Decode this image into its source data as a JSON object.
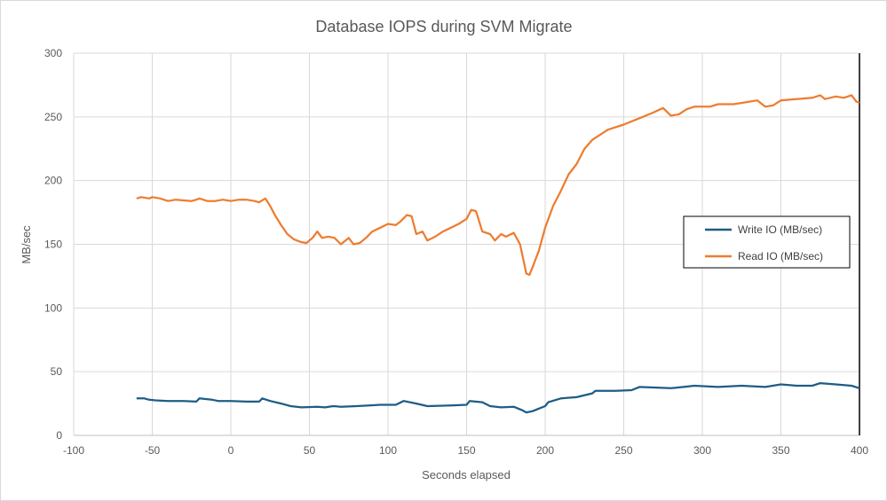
{
  "chart_data": {
    "type": "line",
    "title": "Database IOPS during SVM Migrate",
    "xlabel": "Seconds elapsed",
    "ylabel": "MB/sec",
    "xlim": [
      -100,
      400
    ],
    "ylim": [
      0,
      300
    ],
    "xticks": [
      -100,
      -50,
      0,
      50,
      100,
      150,
      200,
      250,
      300,
      350,
      400
    ],
    "yticks": [
      0,
      50,
      100,
      150,
      200,
      250,
      300
    ],
    "grid": true,
    "legend_position": "right",
    "series": [
      {
        "name": "Write IO (MB/sec)",
        "color": "#1f5c86",
        "points": [
          [
            -60,
            29
          ],
          [
            -55,
            29
          ],
          [
            -52,
            28
          ],
          [
            -48,
            27.5
          ],
          [
            -40,
            27
          ],
          [
            -30,
            27
          ],
          [
            -22,
            26.5
          ],
          [
            -20,
            29
          ],
          [
            -12,
            28
          ],
          [
            -8,
            27
          ],
          [
            0,
            27
          ],
          [
            10,
            26.5
          ],
          [
            18,
            26.5
          ],
          [
            20,
            29
          ],
          [
            25,
            27
          ],
          [
            32,
            25
          ],
          [
            38,
            23
          ],
          [
            45,
            22
          ],
          [
            55,
            22.5
          ],
          [
            60,
            22
          ],
          [
            65,
            23
          ],
          [
            70,
            22.5
          ],
          [
            80,
            23
          ],
          [
            88,
            23.5
          ],
          [
            95,
            24
          ],
          [
            105,
            24
          ],
          [
            110,
            27
          ],
          [
            118,
            25
          ],
          [
            125,
            23
          ],
          [
            140,
            23.5
          ],
          [
            150,
            24
          ],
          [
            152,
            27
          ],
          [
            160,
            26
          ],
          [
            165,
            23
          ],
          [
            172,
            22
          ],
          [
            180,
            22.5
          ],
          [
            185,
            20
          ],
          [
            188,
            18
          ],
          [
            192,
            19
          ],
          [
            196,
            21
          ],
          [
            200,
            23
          ],
          [
            202,
            26
          ],
          [
            210,
            29
          ],
          [
            220,
            30
          ],
          [
            230,
            33
          ],
          [
            232,
            35
          ],
          [
            245,
            35
          ],
          [
            255,
            35.5
          ],
          [
            260,
            38
          ],
          [
            280,
            37
          ],
          [
            288,
            38
          ],
          [
            295,
            39
          ],
          [
            310,
            38
          ],
          [
            325,
            39
          ],
          [
            340,
            38
          ],
          [
            350,
            40
          ],
          [
            360,
            39
          ],
          [
            370,
            39
          ],
          [
            375,
            41
          ],
          [
            385,
            40
          ],
          [
            395,
            39
          ],
          [
            400,
            37
          ]
        ]
      },
      {
        "name": "Read IO (MB/sec)",
        "color": "#ed7d31",
        "points": [
          [
            -60,
            186
          ],
          [
            -57,
            187
          ],
          [
            -52,
            186
          ],
          [
            -50,
            187
          ],
          [
            -45,
            186
          ],
          [
            -40,
            184
          ],
          [
            -35,
            185
          ],
          [
            -25,
            184
          ],
          [
            -22,
            185
          ],
          [
            -20,
            186
          ],
          [
            -15,
            184
          ],
          [
            -10,
            184
          ],
          [
            -5,
            185
          ],
          [
            0,
            184
          ],
          [
            5,
            185
          ],
          [
            10,
            185
          ],
          [
            15,
            184
          ],
          [
            18,
            183
          ],
          [
            22,
            186
          ],
          [
            25,
            180
          ],
          [
            28,
            173
          ],
          [
            32,
            165
          ],
          [
            36,
            158
          ],
          [
            40,
            154
          ],
          [
            44,
            152
          ],
          [
            48,
            151
          ],
          [
            52,
            155
          ],
          [
            55,
            160
          ],
          [
            58,
            155
          ],
          [
            62,
            156
          ],
          [
            66,
            155
          ],
          [
            70,
            150
          ],
          [
            73,
            153
          ],
          [
            75,
            155
          ],
          [
            78,
            150
          ],
          [
            82,
            151
          ],
          [
            86,
            155
          ],
          [
            90,
            160
          ],
          [
            95,
            163
          ],
          [
            100,
            166
          ],
          [
            105,
            165
          ],
          [
            108,
            168
          ],
          [
            112,
            173
          ],
          [
            115,
            172
          ],
          [
            118,
            158
          ],
          [
            122,
            160
          ],
          [
            125,
            153
          ],
          [
            130,
            156
          ],
          [
            135,
            160
          ],
          [
            140,
            163
          ],
          [
            145,
            166
          ],
          [
            150,
            170
          ],
          [
            153,
            177
          ],
          [
            156,
            176
          ],
          [
            160,
            160
          ],
          [
            165,
            158
          ],
          [
            168,
            153
          ],
          [
            172,
            158
          ],
          [
            175,
            156
          ],
          [
            180,
            159
          ],
          [
            184,
            150
          ],
          [
            188,
            127
          ],
          [
            190,
            126
          ],
          [
            192,
            132
          ],
          [
            196,
            145
          ],
          [
            200,
            163
          ],
          [
            205,
            180
          ],
          [
            210,
            192
          ],
          [
            215,
            205
          ],
          [
            220,
            213
          ],
          [
            225,
            225
          ],
          [
            230,
            232
          ],
          [
            240,
            240
          ],
          [
            250,
            244
          ],
          [
            260,
            249
          ],
          [
            268,
            253
          ],
          [
            275,
            257
          ],
          [
            280,
            251
          ],
          [
            285,
            252
          ],
          [
            290,
            256
          ],
          [
            295,
            258
          ],
          [
            305,
            258
          ],
          [
            310,
            260
          ],
          [
            320,
            260
          ],
          [
            330,
            262
          ],
          [
            335,
            263
          ],
          [
            340,
            258
          ],
          [
            345,
            259
          ],
          [
            350,
            263
          ],
          [
            360,
            264
          ],
          [
            370,
            265
          ],
          [
            375,
            267
          ],
          [
            378,
            264
          ],
          [
            385,
            266
          ],
          [
            390,
            265
          ],
          [
            395,
            267
          ],
          [
            398,
            262
          ],
          [
            400,
            261
          ]
        ]
      }
    ]
  }
}
